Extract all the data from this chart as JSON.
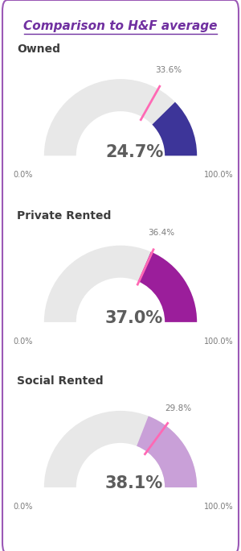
{
  "title": "Comparison to H&F average",
  "title_color": "#7030A0",
  "background_color": "#ffffff",
  "border_color": "#9B59B6",
  "charts": [
    {
      "label": "Owned",
      "ward_pct": 24.7,
      "avg_pct": 33.6,
      "color": "#3D3599",
      "avg_color": "#FF69B4",
      "text_color": "#7B7B7B"
    },
    {
      "label": "Private Rented",
      "ward_pct": 37.0,
      "avg_pct": 36.4,
      "color": "#9B1E9B",
      "avg_color": "#FF69B4",
      "text_color": "#7B7B7B"
    },
    {
      "label": "Social Rented",
      "ward_pct": 38.1,
      "avg_pct": 29.8,
      "color": "#C9A0D8",
      "avg_color": "#FF69B4",
      "text_color": "#7B7B7B"
    }
  ],
  "axis_min_label": "0.0%",
  "axis_max_label": "100.0%",
  "center_text_color": "#5D5D5D",
  "label_color": "#3D3D3D",
  "bg_arc_color": "#E8E8E8",
  "outer_r": 1.0,
  "inner_r": 0.58
}
